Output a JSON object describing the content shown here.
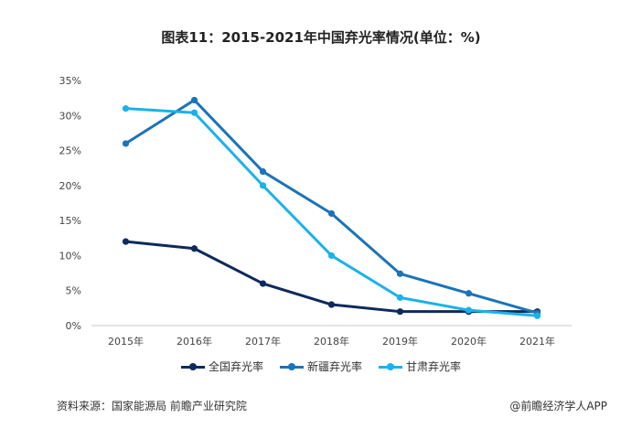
{
  "chart_data": {
    "type": "line",
    "title": "图表11：2015-2021年中国弃光率情况(单位：%)",
    "categories": [
      "2015年",
      "2016年",
      "2017年",
      "2018年",
      "2019年",
      "2020年",
      "2021年"
    ],
    "y_ticks": [
      "0%",
      "5%",
      "10%",
      "15%",
      "20%",
      "25%",
      "30%",
      "35%"
    ],
    "ylim": [
      0,
      35
    ],
    "grid": false,
    "legend_position": "bottom",
    "series": [
      {
        "name": "全国弃光率",
        "color": "#0d2a5c",
        "values": [
          12,
          11,
          6,
          3,
          2,
          2,
          2
        ]
      },
      {
        "name": "新疆弃光率",
        "color": "#1b74b8",
        "values": [
          26,
          32.2,
          22,
          16,
          7.4,
          4.6,
          1.8
        ]
      },
      {
        "name": "甘肃弃光率",
        "color": "#1ab2ea",
        "values": [
          31,
          30.4,
          20,
          10,
          4,
          2.2,
          1.4
        ]
      }
    ]
  },
  "footer": {
    "source": "资料来源：国家能源局 前瞻产业研究院",
    "brand": "@前瞻经济学人APP"
  }
}
